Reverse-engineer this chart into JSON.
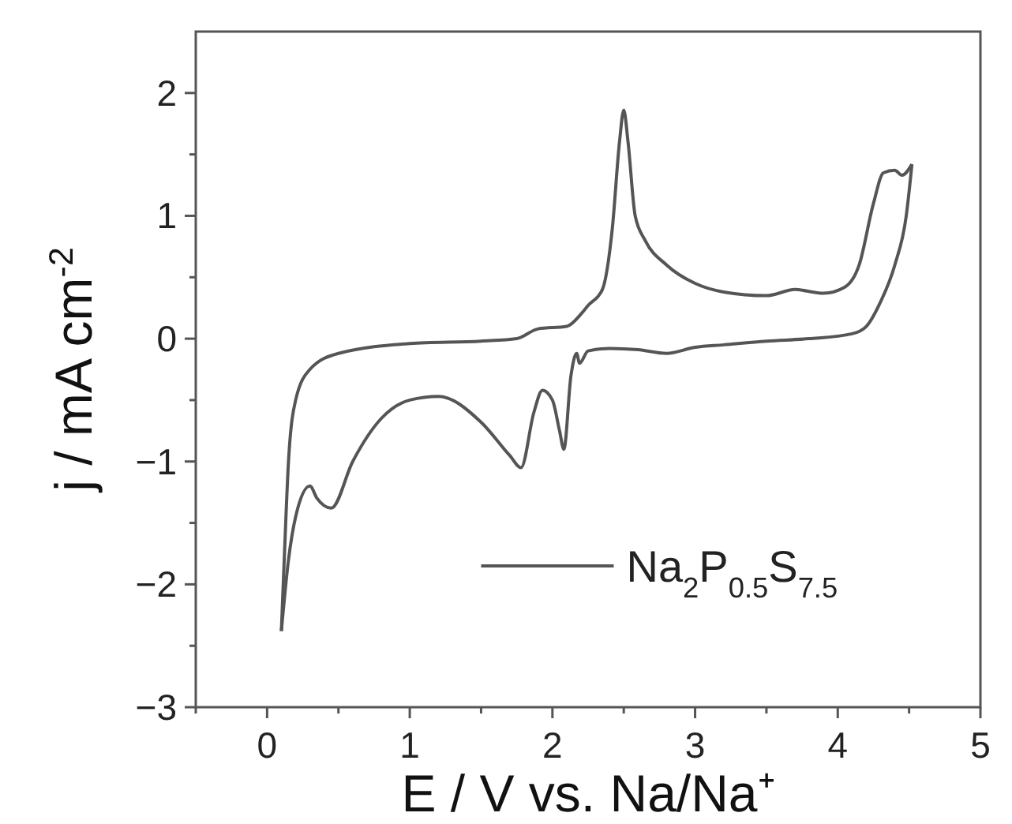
{
  "chart_data": {
    "type": "line",
    "xlabel": "E / V vs. Na/Na⁺",
    "ylabel": "j / mA cm$^{-2}$",
    "xlim": [
      -0.5,
      5
    ],
    "ylim": [
      -3,
      2.5
    ],
    "xticks": [
      {
        "value": -0.5,
        "label": null
      },
      0,
      {
        "value": 0.5,
        "label": null
      },
      1,
      {
        "value": 1.5,
        "label": null
      },
      2,
      {
        "value": 2.5,
        "label": null
      },
      3,
      {
        "value": 3.5,
        "label": null
      },
      4,
      {
        "value": 4.5,
        "label": null
      },
      5
    ],
    "yticks": [
      -3,
      {
        "value": -2.5,
        "label": null
      },
      -2,
      {
        "value": -1.5,
        "label": null
      },
      -1,
      {
        "value": -0.5,
        "label": null
      },
      0,
      {
        "value": 0.5,
        "label": null
      },
      1,
      {
        "value": 1.5,
        "label": null
      },
      2
    ],
    "legend": "bottom right",
    "marker": "none",
    "line_style": "solid",
    "series": [
      {
        "name": "Na$_{2}$P$_{0.5}$S$_{7.5}$",
        "color": "#555555",
        "x": [
          0.1,
          0.12,
          0.15,
          0.2,
          0.3,
          0.5,
          1,
          1.5,
          1.75,
          1.9,
          2.1,
          2.2,
          2.25,
          2.35,
          2.42,
          2.47,
          2.5,
          2.53,
          2.58,
          2.65,
          2.8,
          3.0,
          3.2,
          3.5,
          3.7,
          3.9,
          4.05,
          4.15,
          4.25,
          4.32,
          4.4,
          4.45,
          4.52
        ],
        "values": [
          -2.38,
          -1.8,
          -1.0,
          -0.5,
          -0.25,
          -0.12,
          -0.04,
          -0.02,
          0,
          0.08,
          0.1,
          0.2,
          0.27,
          0.4,
          0.9,
          1.6,
          1.86,
          1.6,
          1.0,
          0.8,
          0.6,
          0.45,
          0.38,
          0.35,
          0.4,
          0.37,
          0.42,
          0.6,
          1.1,
          1.35,
          1.37,
          1.33,
          1.42
        ]
      },
      {
        "color": "#555555",
        "x": [
          0.1,
          0.15,
          0.2,
          0.3,
          0.35,
          0.45,
          0.6,
          0.8,
          1.0,
          1.2,
          1.5,
          1.7,
          1.78,
          1.87,
          1.93,
          2.0,
          2.05,
          2.08,
          2.13,
          2.17,
          2.19,
          2.25,
          2.4,
          2.6,
          2.8,
          3.0,
          3.2,
          3.5,
          3.8,
          4.1,
          4.2,
          4.3,
          4.4,
          4.48,
          4.52
        ],
        "values": [
          -2.38,
          -1.8,
          -1.45,
          -1.2,
          -1.3,
          -1.38,
          -1.0,
          -0.65,
          -0.5,
          -0.47,
          -0.68,
          -0.95,
          -1.05,
          -0.6,
          -0.42,
          -0.5,
          -0.75,
          -0.9,
          -0.3,
          -0.12,
          -0.2,
          -0.1,
          -0.08,
          -0.09,
          -0.12,
          -0.07,
          -0.05,
          -0.02,
          0,
          0.04,
          0.1,
          0.3,
          0.6,
          1.0,
          1.42
        ]
      }
    ]
  }
}
